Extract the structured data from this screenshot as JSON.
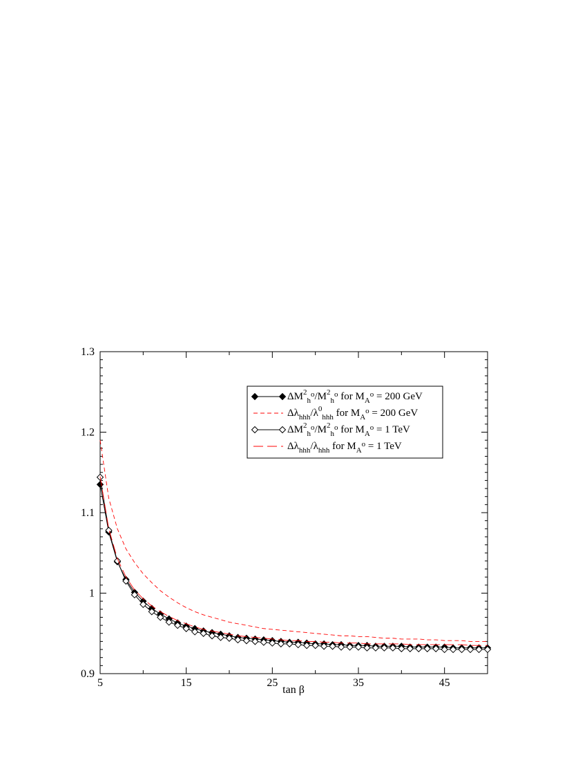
{
  "chart_data": {
    "type": "line",
    "xlabel": "tan β",
    "ylabel": "",
    "xlim": [
      5,
      50
    ],
    "ylim": [
      0.9,
      1.3
    ],
    "xticks": [
      "5",
      "15",
      "25",
      "35",
      "45"
    ],
    "yticks": [
      "0.9",
      "1",
      "1.1",
      "1.2",
      "1.3"
    ],
    "grid": false,
    "legend_position": "top-right",
    "colors": {
      "black": "#000000",
      "red": "#ff0000"
    },
    "x": [
      5,
      6,
      7,
      8,
      9,
      10,
      11,
      12,
      13,
      14,
      15,
      16,
      17,
      18,
      19,
      20,
      21,
      22,
      23,
      24,
      25,
      26,
      27,
      28,
      29,
      30,
      31,
      32,
      33,
      34,
      35,
      36,
      37,
      38,
      39,
      40,
      41,
      42,
      43,
      44,
      45,
      46,
      47,
      48,
      49,
      50
    ],
    "series": [
      {
        "name": "ΔM²ₕᵒ/M²ₕᵒ for M_Aᵒ = 200 GeV",
        "legend": {
          "main1": "ΔM",
          "sup1": "2",
          "sub1": "h",
          "supo1": "o",
          "mid": "/M",
          "sup2": "2",
          "sub2": "h",
          "supo2": "o",
          "tail1": " for M",
          "subA": "A",
          "supA": "o",
          "tail2": " = 200 GeV"
        },
        "style": "solid",
        "color": "#000000",
        "marker": "filled-diamond",
        "values": [
          1.135,
          1.076,
          1.039,
          1.017,
          1.001,
          0.99,
          0.981,
          0.974,
          0.968,
          0.963,
          0.959,
          0.956,
          0.953,
          0.951,
          0.949,
          0.947,
          0.945,
          0.944,
          0.943,
          0.942,
          0.941,
          0.94,
          0.939,
          0.939,
          0.938,
          0.937,
          0.937,
          0.936,
          0.936,
          0.935,
          0.935,
          0.935,
          0.934,
          0.934,
          0.934,
          0.934,
          0.933,
          0.933,
          0.933,
          0.933,
          0.933,
          0.932,
          0.932,
          0.932,
          0.932,
          0.932
        ]
      },
      {
        "name": "Δλhhh/λ⁰hhh for M_Aᵒ = 200 GeV",
        "legend": {
          "main1": "Δλ",
          "sub1": "hhh",
          "mid": "/λ",
          "sup2": "0",
          "sub2": "hhh",
          "tail1": " for M",
          "subA": "A",
          "supA": "o",
          "tail2": " = 200 GeV"
        },
        "style": "short-dash",
        "color": "#ff0000",
        "marker": "none",
        "values": [
          1.19,
          1.118,
          1.08,
          1.055,
          1.038,
          1.024,
          1.013,
          1.003,
          0.995,
          0.988,
          0.982,
          0.977,
          0.973,
          0.97,
          0.967,
          0.964,
          0.962,
          0.96,
          0.958,
          0.956,
          0.955,
          0.954,
          0.953,
          0.952,
          0.951,
          0.95,
          0.949,
          0.948,
          0.947,
          0.947,
          0.946,
          0.946,
          0.945,
          0.944,
          0.944,
          0.943,
          0.943,
          0.943,
          0.942,
          0.942,
          0.941,
          0.941,
          0.941,
          0.94,
          0.94,
          0.94
        ]
      },
      {
        "name": "ΔM²ₕᵒ/M²ₕᵒ for M_Aᵒ = 1 TeV",
        "legend": {
          "main1": "ΔM",
          "sup1": "2",
          "sub1": "h",
          "supo1": "o",
          "mid": "/M",
          "sup2": "2",
          "sub2": "h",
          "supo2": "o",
          "tail1": " for M",
          "subA": "A",
          "supA": "o",
          "tail2": " = 1 TeV"
        },
        "style": "solid",
        "color": "#000000",
        "marker": "open-diamond",
        "values": [
          1.144,
          1.078,
          1.04,
          1.015,
          0.998,
          0.986,
          0.977,
          0.97,
          0.964,
          0.96,
          0.956,
          0.952,
          0.95,
          0.947,
          0.945,
          0.944,
          0.942,
          0.941,
          0.94,
          0.939,
          0.938,
          0.937,
          0.937,
          0.936,
          0.935,
          0.935,
          0.934,
          0.934,
          0.933,
          0.933,
          0.933,
          0.932,
          0.932,
          0.932,
          0.932,
          0.931,
          0.931,
          0.931,
          0.931,
          0.931,
          0.93,
          0.93,
          0.93,
          0.93,
          0.93,
          0.93
        ]
      },
      {
        "name": "Δλhhh/λhhh for M_Aᵒ = 1 TeV",
        "legend": {
          "main1": "Δλ",
          "sub1": "hhh",
          "mid": "/λ",
          "sup2": "",
          "sub2": "hhh",
          "tail1": " for M",
          "subA": "A",
          "supA": "o",
          "tail2": " = 1 TeV"
        },
        "style": "long-dash",
        "color": "#ff0000",
        "marker": "none",
        "values": [
          1.145,
          1.08,
          1.043,
          1.02,
          1.004,
          0.993,
          0.984,
          0.977,
          0.971,
          0.966,
          0.962,
          0.958,
          0.955,
          0.953,
          0.951,
          0.949,
          0.947,
          0.946,
          0.945,
          0.944,
          0.943,
          0.942,
          0.941,
          0.941,
          0.94,
          0.94,
          0.939,
          0.939,
          0.938,
          0.938,
          0.938,
          0.937,
          0.937,
          0.937,
          0.937,
          0.937,
          0.936,
          0.936,
          0.936,
          0.936,
          0.936,
          0.936,
          0.936,
          0.935,
          0.935,
          0.935
        ]
      }
    ]
  }
}
